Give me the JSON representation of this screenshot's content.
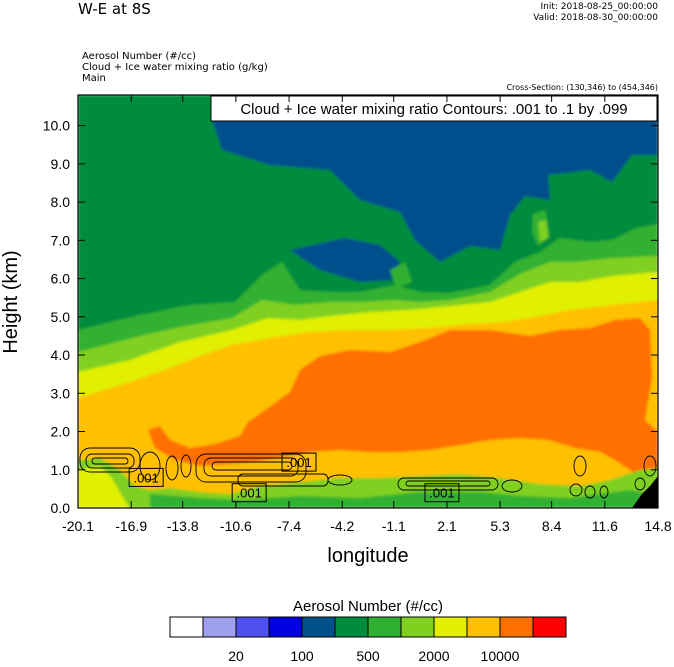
{
  "header": {
    "title": "W-E at 8S",
    "init": "Init: 2018-08-25_00:00:00",
    "valid": "Valid: 2018-08-30_00:00:00",
    "fields": [
      "Aerosol Number   (#/cc)",
      "Cloud + Ice water mixing ratio   (g/kg)",
      "Main"
    ],
    "cross_section": "Cross-Section: (130,346) to (454,346)"
  },
  "chart_data": {
    "type": "heatmap",
    "title": "W-E at 8S",
    "xlabel": "longitude",
    "ylabel": "Height (km)",
    "x_ticks": [
      "-20.1",
      "-16.9",
      "-13.8",
      "-10.6",
      "-7.4",
      "-4.2",
      "-1.1",
      "2.1",
      "5.3",
      "8.4",
      "11.6",
      "14.8"
    ],
    "y_ticks": [
      "0.0",
      "1.0",
      "2.0",
      "3.0",
      "4.0",
      "5.0",
      "6.0",
      "7.0",
      "8.0",
      "9.0",
      "10.0"
    ],
    "xlim": [
      -20.1,
      14.8
    ],
    "ylim": [
      0.0,
      10.8
    ],
    "contour_info": "Cloud + Ice water mixing ratio Contours: .001 to .1 by .099",
    "contour_labels": [
      {
        "text": ".001",
        "x": -16.0,
        "y": 0.8
      },
      {
        "text": ".001",
        "x": -9.8,
        "y": 0.4
      },
      {
        "text": ".001",
        "x": -6.8,
        "y": 1.2
      },
      {
        "text": ".001",
        "x": 1.8,
        "y": 0.4
      }
    ],
    "colorbar": {
      "title": "Aerosol Number  (#/cc)",
      "colors": [
        "#ffffff",
        "#a0a0f0",
        "#5050f0",
        "#0000e0",
        "#00508c",
        "#008c3c",
        "#30b030",
        "#80d020",
        "#e0f000",
        "#ffc000",
        "#ff7000",
        "#ff0000"
      ],
      "labels": [
        {
          "text": "20",
          "after_box": 2
        },
        {
          "text": "100",
          "after_box": 4
        },
        {
          "text": "500",
          "after_box": 6
        },
        {
          "text": "2000",
          "after_box": 8
        },
        {
          "text": "10000",
          "after_box": 10
        }
      ]
    }
  }
}
